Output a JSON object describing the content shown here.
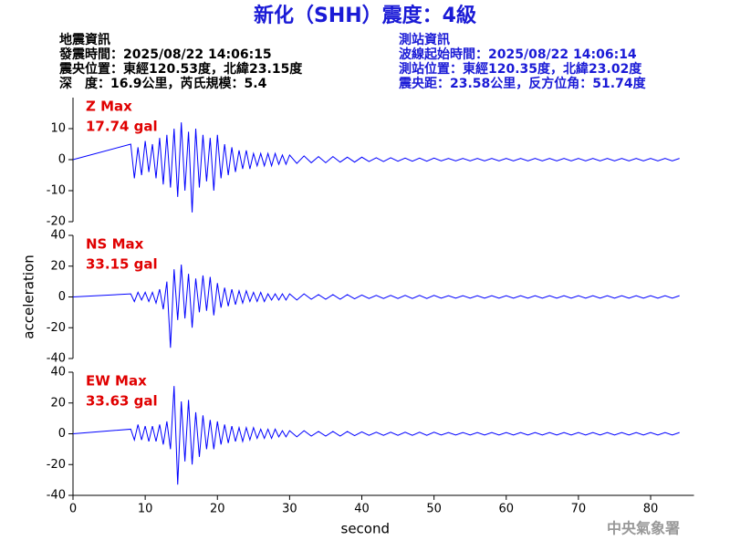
{
  "header": {
    "title": "新化（SHH）震度：4級",
    "left": [
      "地震資訊",
      "發震時間：2025/08/22 14:06:15",
      "震央位置：東經120.53度，北緯23.15度",
      "深　度：16.9公里，芮氏規模：5.4"
    ],
    "right": [
      "測站資訊",
      "波線起始時間：2025/08/22 14:06:14",
      "測站位置：東經120.35度，北緯23.02度",
      "震央距：23.58公里，反方位角：51.74度"
    ],
    "watermark": "中央氣象署"
  },
  "chart_data": [
    {
      "type": "line",
      "annotations": [
        "Z Max",
        "17.74 gal"
      ],
      "color": "#0000ff",
      "xlim": [
        0,
        86
      ],
      "ylim": [
        -20,
        20
      ],
      "yticks": [
        -20,
        -10,
        0,
        10
      ],
      "x": [
        0,
        8,
        8.5,
        9,
        9.5,
        10,
        10.5,
        11,
        11.5,
        12,
        12.5,
        13,
        13.5,
        14,
        14.5,
        15,
        15.5,
        16,
        16.5,
        17,
        17.5,
        18,
        18.5,
        19,
        19.5,
        20,
        20.5,
        21,
        21.5,
        22,
        22.5,
        23,
        23.5,
        24,
        24.5,
        25,
        25.5,
        26,
        26.5,
        27,
        27.5,
        28,
        28.5,
        29,
        29.5,
        30,
        31,
        32,
        33,
        34,
        35,
        36,
        37,
        38,
        39,
        40,
        41,
        42,
        43,
        44,
        45,
        46,
        47,
        48,
        49,
        50,
        51,
        52,
        53,
        54,
        55,
        56,
        57,
        58,
        59,
        60,
        61,
        62,
        63,
        64,
        65,
        66,
        67,
        68,
        69,
        70,
        71,
        72,
        73,
        74,
        75,
        76,
        77,
        78,
        79,
        80,
        81,
        82,
        83,
        84
      ],
      "values": [
        0,
        5,
        -6,
        4,
        -5,
        6,
        -4,
        5,
        -6,
        7,
        -8,
        8,
        -9,
        10,
        -12,
        12,
        -10,
        9,
        -17,
        10,
        -9,
        8,
        -7,
        7,
        -10,
        8,
        -6,
        5,
        -5,
        4,
        -4,
        3,
        -3,
        3,
        -3,
        2,
        -2,
        2,
        -2,
        2,
        -2,
        2,
        -1.5,
        1.5,
        -1.5,
        1.5,
        -1.2,
        1.2,
        -1,
        1,
        -1,
        1,
        -0.8,
        0.8,
        -0.8,
        0.8,
        -0.6,
        0.6,
        -0.6,
        0.6,
        -0.5,
        0.5,
        -0.5,
        0.5,
        -0.5,
        0.5,
        -0.4,
        0.4,
        -0.4,
        0.4,
        -0.4,
        0.4,
        -0.4,
        0.4,
        -0.4,
        0.4,
        -0.4,
        0.4,
        -0.4,
        0.4,
        -0.4,
        0.4,
        -0.4,
        0.4,
        -0.4,
        0.4,
        -0.4,
        0.4,
        -0.4,
        0.4,
        -0.4,
        0.4,
        -0.4,
        0.4,
        -0.4,
        0.4,
        -0.4,
        0.4,
        -0.4,
        0.4
      ]
    },
    {
      "type": "line",
      "annotations": [
        "NS Max",
        "33.15 gal"
      ],
      "color": "#0000ff",
      "ylabel": "acceleration",
      "xlim": [
        0,
        86
      ],
      "ylim": [
        -40,
        40
      ],
      "yticks": [
        -40,
        -20,
        0,
        20,
        40
      ],
      "x": [
        0,
        8,
        8.5,
        9,
        9.5,
        10,
        10.5,
        11,
        11.5,
        12,
        12.5,
        13,
        13.5,
        14,
        14.5,
        15,
        15.5,
        16,
        16.5,
        17,
        17.5,
        18,
        18.5,
        19,
        19.5,
        20,
        20.5,
        21,
        21.5,
        22,
        22.5,
        23,
        23.5,
        24,
        24.5,
        25,
        25.5,
        26,
        26.5,
        27,
        27.5,
        28,
        28.5,
        29,
        29.5,
        30,
        31,
        32,
        33,
        34,
        35,
        36,
        37,
        38,
        39,
        40,
        41,
        42,
        43,
        44,
        45,
        46,
        47,
        48,
        49,
        50,
        51,
        52,
        53,
        54,
        55,
        56,
        57,
        58,
        59,
        60,
        61,
        62,
        63,
        64,
        65,
        66,
        67,
        68,
        69,
        70,
        71,
        72,
        73,
        74,
        75,
        76,
        77,
        78,
        79,
        80,
        81,
        82,
        83,
        84
      ],
      "values": [
        0,
        2,
        -3,
        3,
        -2,
        3,
        -3,
        3,
        -4,
        5,
        -8,
        10,
        -33,
        18,
        -15,
        21,
        -14,
        15,
        -20,
        12,
        -10,
        14,
        -9,
        13,
        -12,
        9,
        -7,
        6,
        -6,
        5,
        -5,
        4,
        -4,
        4,
        -3,
        3,
        -3,
        3,
        -3,
        2,
        -2,
        2,
        -2,
        2,
        -2,
        2,
        -2,
        2,
        -1.5,
        1.5,
        -1.5,
        1.5,
        -1.5,
        1.5,
        -1.2,
        1.2,
        -1,
        1,
        -1,
        1,
        -1,
        1,
        -1,
        1,
        -1,
        1,
        -0.8,
        0.8,
        -0.8,
        0.8,
        -0.8,
        0.8,
        -0.8,
        0.8,
        -0.8,
        0.8,
        -0.8,
        0.8,
        -0.8,
        0.8,
        -0.8,
        0.8,
        -0.8,
        0.8,
        -0.8,
        0.8,
        -0.8,
        0.8,
        -0.8,
        0.8,
        -0.8,
        0.8,
        -0.8,
        0.8,
        -0.8,
        0.8,
        -0.8,
        0.8,
        -0.8,
        0.8
      ]
    },
    {
      "type": "line",
      "annotations": [
        "EW Max",
        "33.63 gal"
      ],
      "color": "#0000ff",
      "xlabel": "second",
      "xlim": [
        0,
        86
      ],
      "ylim": [
        -40,
        40
      ],
      "yticks": [
        -40,
        -20,
        0,
        20,
        40
      ],
      "xticks": [
        0,
        10,
        20,
        30,
        40,
        50,
        60,
        70,
        80
      ],
      "x": [
        0,
        8,
        8.5,
        9,
        9.5,
        10,
        10.5,
        11,
        11.5,
        12,
        12.5,
        13,
        13.5,
        14,
        14.5,
        15,
        15.5,
        16,
        16.5,
        17,
        17.5,
        18,
        18.5,
        19,
        19.5,
        20,
        20.5,
        21,
        21.5,
        22,
        22.5,
        23,
        23.5,
        24,
        24.5,
        25,
        25.5,
        26,
        26.5,
        27,
        27.5,
        28,
        28.5,
        29,
        29.5,
        30,
        31,
        32,
        33,
        34,
        35,
        36,
        37,
        38,
        39,
        40,
        41,
        42,
        43,
        44,
        45,
        46,
        47,
        48,
        49,
        50,
        51,
        52,
        53,
        54,
        55,
        56,
        57,
        58,
        59,
        60,
        61,
        62,
        63,
        64,
        65,
        66,
        67,
        68,
        69,
        70,
        71,
        72,
        73,
        74,
        75,
        76,
        77,
        78,
        79,
        80,
        81,
        82,
        83,
        84
      ],
      "values": [
        0,
        3,
        -4,
        6,
        -4,
        5,
        -5,
        5,
        -5,
        6,
        -7,
        8,
        -10,
        31,
        -33,
        21,
        -18,
        22,
        -20,
        14,
        -15,
        12,
        -10,
        9,
        -10,
        8,
        -7,
        6,
        -6,
        5,
        -5,
        4,
        -5,
        4,
        -4,
        4,
        -3,
        3,
        -3,
        3,
        -3,
        3,
        -2,
        2,
        -2,
        2,
        -2,
        2,
        -1.5,
        1.5,
        -1.5,
        1.5,
        -1.5,
        1.5,
        -1.2,
        1.2,
        -1,
        1,
        -1,
        1,
        -1,
        1,
        -1,
        1,
        -1,
        1,
        -0.8,
        0.8,
        -0.8,
        0.8,
        -0.8,
        0.8,
        -0.8,
        0.8,
        -0.8,
        0.8,
        -0.8,
        0.8,
        -0.8,
        0.8,
        -0.8,
        0.8,
        -0.8,
        0.8,
        -0.8,
        0.8,
        -0.8,
        0.8,
        -0.8,
        0.8,
        -0.8,
        0.8,
        -0.8,
        0.8,
        -0.8,
        0.8,
        -0.8,
        0.8,
        -0.8,
        0.8
      ]
    }
  ]
}
